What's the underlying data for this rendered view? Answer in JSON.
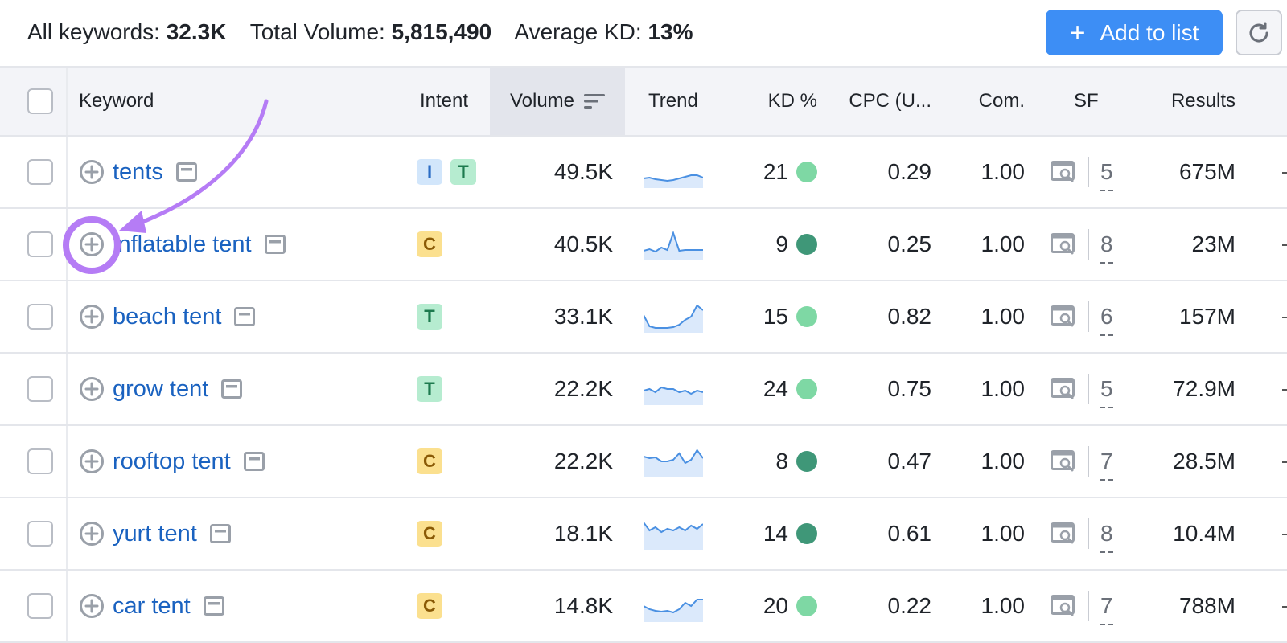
{
  "summary": {
    "all_keywords_label": "All keywords:",
    "all_keywords_value": "32.3K",
    "total_volume_label": "Total Volume:",
    "total_volume_value": "5,815,490",
    "avg_kd_label": "Average KD:",
    "avg_kd_value": "13%"
  },
  "toolbar": {
    "add_to_list_label": "Add to list",
    "refresh_icon": "refresh-icon"
  },
  "columns": {
    "keyword": "Keyword",
    "intent": "Intent",
    "volume": "Volume",
    "trend": "Trend",
    "kd": "KD %",
    "cpc": "CPC (U...",
    "com": "Com.",
    "sf": "SF",
    "results": "Results"
  },
  "colors": {
    "accent": "#3d8ef5",
    "link": "#1a62c0",
    "annotation": "#b57cf5",
    "kd_light": "#7ed8a4",
    "kd_dark": "#3f9778"
  },
  "rows": [
    {
      "keyword": "tents",
      "intents": [
        "I",
        "T"
      ],
      "volume": "49.5K",
      "trend": [
        8,
        9,
        7,
        6,
        5,
        6,
        8,
        10,
        12,
        12,
        9
      ],
      "kd": "21",
      "kd_level": "light",
      "cpc": "0.29",
      "com": "1.00",
      "sf": "5",
      "results": "675M"
    },
    {
      "keyword": "inflatable tent",
      "intents": [
        "C"
      ],
      "volume": "40.5K",
      "trend": [
        8,
        10,
        7,
        12,
        9,
        30,
        8,
        9,
        9,
        9,
        9
      ],
      "kd": "9",
      "kd_level": "dark",
      "cpc": "0.25",
      "com": "1.00",
      "sf": "8",
      "results": "23M"
    },
    {
      "keyword": "beach tent",
      "intents": [
        "T"
      ],
      "volume": "33.1K",
      "trend": [
        18,
        4,
        2,
        2,
        2,
        3,
        6,
        12,
        16,
        30,
        24
      ],
      "kd": "15",
      "kd_level": "light",
      "cpc": "0.82",
      "com": "1.00",
      "sf": "6",
      "results": "157M"
    },
    {
      "keyword": "grow tent",
      "intents": [
        "T"
      ],
      "volume": "22.2K",
      "trend": [
        14,
        16,
        12,
        18,
        16,
        16,
        12,
        14,
        10,
        14,
        12
      ],
      "kd": "24",
      "kd_level": "light",
      "cpc": "0.75",
      "com": "1.00",
      "sf": "5",
      "results": "72.9M"
    },
    {
      "keyword": "rooftop tent",
      "intents": [
        "C"
      ],
      "volume": "22.2K",
      "trend": [
        22,
        20,
        21,
        16,
        16,
        18,
        26,
        14,
        18,
        30,
        20
      ],
      "kd": "8",
      "kd_level": "dark",
      "cpc": "0.47",
      "com": "1.00",
      "sf": "7",
      "results": "28.5M"
    },
    {
      "keyword": "yurt tent",
      "intents": [
        "C"
      ],
      "volume": "18.1K",
      "trend": [
        30,
        20,
        24,
        18,
        22,
        20,
        24,
        20,
        26,
        22,
        28
      ],
      "kd": "14",
      "kd_level": "dark",
      "cpc": "0.61",
      "com": "1.00",
      "sf": "8",
      "results": "10.4M"
    },
    {
      "keyword": "car tent",
      "intents": [
        "C"
      ],
      "volume": "14.8K",
      "trend": [
        16,
        12,
        10,
        9,
        10,
        8,
        12,
        20,
        16,
        24,
        24
      ],
      "kd": "20",
      "kd_level": "light",
      "cpc": "0.22",
      "com": "1.00",
      "sf": "7",
      "results": "788M"
    }
  ]
}
